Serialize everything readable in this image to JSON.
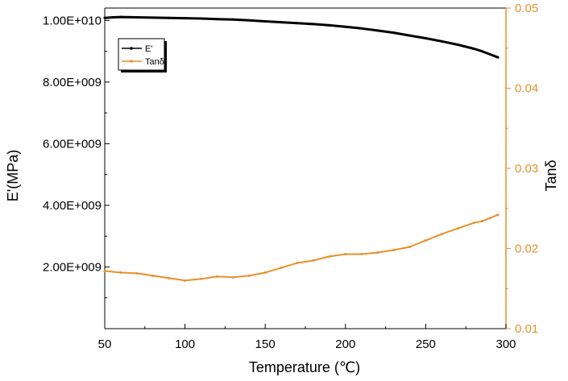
{
  "chart_data": {
    "type": "line",
    "title": "",
    "xlabel": "Temperature (℃)",
    "ylabel_left": "E'(MPa)",
    "ylabel_right": "Tanδ",
    "xlim": [
      50,
      300
    ],
    "ylim_left": [
      0,
      10400000000
    ],
    "ylim_right": [
      0.01,
      0.05
    ],
    "x_ticks": [
      50,
      100,
      150,
      200,
      250,
      300
    ],
    "y_left_ticks": [
      {
        "value": 2000000000,
        "label": "2.00E+009"
      },
      {
        "value": 4000000000,
        "label": "4.00E+009"
      },
      {
        "value": 6000000000,
        "label": "6.00E+009"
      },
      {
        "value": 8000000000,
        "label": "8.00E+009"
      },
      {
        "value": 10000000000,
        "label": "1.00E+010"
      }
    ],
    "y_right_ticks": [
      {
        "value": 0.01,
        "label": "0.01"
      },
      {
        "value": 0.02,
        "label": "0.02"
      },
      {
        "value": 0.03,
        "label": "0.03"
      },
      {
        "value": 0.04,
        "label": "0.04"
      },
      {
        "value": 0.05,
        "label": "0.05"
      }
    ],
    "legend_position": "top-left",
    "grid": false,
    "series": [
      {
        "name": "E'",
        "axis": "left",
        "color": "#000000",
        "x": [
          50,
          55,
          60,
          70,
          80,
          90,
          100,
          110,
          120,
          130,
          140,
          150,
          160,
          170,
          180,
          190,
          200,
          210,
          220,
          230,
          240,
          250,
          260,
          270,
          280,
          285,
          290,
          295
        ],
        "values": [
          10080000000,
          10100000000,
          10110000000,
          10100000000,
          10090000000,
          10080000000,
          10070000000,
          10060000000,
          10040000000,
          10030000000,
          10000000000,
          9970000000,
          9940000000,
          9910000000,
          9880000000,
          9840000000,
          9790000000,
          9740000000,
          9670000000,
          9600000000,
          9510000000,
          9420000000,
          9320000000,
          9210000000,
          9080000000,
          9000000000,
          8900000000,
          8800000000
        ]
      },
      {
        "name": "Tanδ",
        "axis": "right",
        "color": "#E8902A",
        "x": [
          50,
          60,
          70,
          80,
          90,
          100,
          110,
          120,
          130,
          140,
          150,
          160,
          170,
          180,
          190,
          200,
          210,
          220,
          230,
          240,
          250,
          260,
          270,
          280,
          285,
          290,
          295
        ],
        "values": [
          0.0172,
          0.017,
          0.0169,
          0.0166,
          0.0163,
          0.016,
          0.0162,
          0.0165,
          0.0164,
          0.0166,
          0.017,
          0.0176,
          0.0182,
          0.0185,
          0.019,
          0.0193,
          0.0193,
          0.0195,
          0.0198,
          0.0202,
          0.021,
          0.0218,
          0.0225,
          0.0232,
          0.0234,
          0.0238,
          0.0242
        ]
      }
    ]
  }
}
